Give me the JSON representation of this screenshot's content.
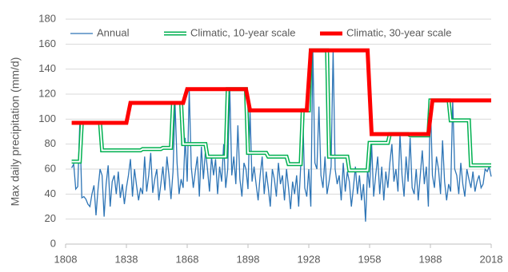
{
  "chart_data": {
    "type": "line",
    "y_label": "Max daily precipitation (mm/d)",
    "xlim": [
      1808,
      2018
    ],
    "xticks": [
      1808,
      1838,
      1868,
      1898,
      1928,
      1958,
      1988,
      2018
    ],
    "ylim": [
      0,
      180
    ],
    "yticks": [
      0,
      20,
      40,
      60,
      80,
      100,
      120,
      140,
      160,
      180
    ],
    "grid": true,
    "legend": "top",
    "series": [
      {
        "name": "Annual",
        "color": "#2e75b6",
        "linewidth": 1.3,
        "x": [
          1811,
          1812,
          1813,
          1814,
          1815,
          1816,
          1817,
          1818,
          1819,
          1820,
          1821,
          1822,
          1823,
          1824,
          1825,
          1826,
          1827,
          1828,
          1829,
          1830,
          1831,
          1832,
          1833,
          1834,
          1835,
          1836,
          1837,
          1838,
          1839,
          1840,
          1841,
          1842,
          1843,
          1844,
          1845,
          1846,
          1847,
          1848,
          1849,
          1850,
          1851,
          1852,
          1853,
          1854,
          1855,
          1856,
          1857,
          1858,
          1859,
          1860,
          1861,
          1862,
          1863,
          1864,
          1865,
          1866,
          1867,
          1868,
          1869,
          1870,
          1871,
          1872,
          1873,
          1874,
          1875,
          1876,
          1877,
          1878,
          1879,
          1880,
          1881,
          1882,
          1883,
          1884,
          1885,
          1886,
          1887,
          1888,
          1889,
          1890,
          1891,
          1892,
          1893,
          1894,
          1895,
          1896,
          1897,
          1898,
          1899,
          1900,
          1901,
          1902,
          1903,
          1904,
          1905,
          1906,
          1907,
          1908,
          1909,
          1910,
          1911,
          1912,
          1913,
          1914,
          1915,
          1916,
          1917,
          1918,
          1919,
          1920,
          1921,
          1922,
          1923,
          1924,
          1925,
          1926,
          1927,
          1928,
          1929,
          1930,
          1931,
          1932,
          1933,
          1934,
          1935,
          1936,
          1937,
          1938,
          1939,
          1940,
          1941,
          1942,
          1943,
          1944,
          1945,
          1946,
          1947,
          1948,
          1949,
          1950,
          1951,
          1952,
          1953,
          1954,
          1955,
          1956,
          1957,
          1958,
          1959,
          1960,
          1961,
          1962,
          1963,
          1964,
          1965,
          1966,
          1967,
          1968,
          1969,
          1970,
          1971,
          1972,
          1973,
          1974,
          1975,
          1976,
          1977,
          1978,
          1979,
          1980,
          1981,
          1982,
          1983,
          1984,
          1985,
          1986,
          1987,
          1988,
          1989,
          1990,
          1991,
          1992,
          1993,
          1994,
          1995,
          1996,
          1997,
          1998,
          1999,
          2000,
          2001,
          2002,
          2003,
          2004,
          2005,
          2006,
          2007,
          2008,
          2009,
          2010,
          2011,
          2012,
          2013,
          2014,
          2015,
          2016,
          2017,
          2018
        ],
        "values": [
          61,
          64,
          44,
          46,
          97,
          37,
          38,
          36,
          32,
          30,
          40,
          47,
          23,
          44,
          60,
          55,
          22,
          48,
          63,
          30,
          50,
          55,
          40,
          58,
          37,
          48,
          32,
          45,
          55,
          68,
          38,
          60,
          47,
          35,
          45,
          40,
          70,
          42,
          55,
          73,
          41,
          52,
          60,
          35,
          48,
          62,
          43,
          70,
          55,
          36,
          58,
          113,
          65,
          40,
          52,
          45,
          85,
          50,
          124,
          62,
          45,
          58,
          70,
          38,
          78,
          52,
          75,
          60,
          42,
          70,
          55,
          68,
          40,
          62,
          50,
          80,
          45,
          60,
          125,
          55,
          70,
          48,
          95,
          52,
          38,
          65,
          60,
          44,
          107,
          50,
          62,
          48,
          35,
          55,
          70,
          40,
          58,
          45,
          30,
          60,
          52,
          38,
          65,
          48,
          55,
          35,
          60,
          45,
          28,
          50,
          40,
          55,
          30,
          62,
          107,
          45,
          38,
          60,
          30,
          155,
          65,
          60,
          110,
          55,
          45,
          70,
          40,
          50,
          62,
          155,
          60,
          48,
          55,
          35,
          65,
          42,
          58,
          50,
          30,
          45,
          62,
          40,
          55,
          35,
          48,
          18,
          60,
          45,
          80,
          38,
          55,
          70,
          40,
          62,
          35,
          58,
          45,
          65,
          80,
          50,
          60,
          42,
          88,
          55,
          38,
          70,
          50,
          85,
          45,
          40,
          60,
          35,
          55,
          75,
          48,
          62,
          30,
          115,
          55,
          45,
          70,
          60,
          40,
          83,
          50,
          35,
          48,
          42,
          115,
          60,
          55,
          40,
          65,
          48,
          38,
          60,
          52,
          45,
          58,
          42,
          50,
          55,
          45,
          48,
          60,
          58,
          62,
          54
        ]
      },
      {
        "name": "Climatic, 10-year scale",
        "color": "#00b050",
        "linewidth": 5,
        "hollow": true,
        "x": [
          1811,
          1815,
          1816,
          1825,
          1826,
          1845,
          1846,
          1855,
          1856,
          1860,
          1861,
          1865,
          1866,
          1877,
          1878,
          1887,
          1888,
          1897,
          1898,
          1907,
          1908,
          1917,
          1918,
          1924,
          1925,
          1928,
          1929,
          1937,
          1938,
          1947,
          1948,
          1957,
          1958,
          1967,
          1968,
          1977,
          1978,
          1987,
          1988,
          1997,
          1998,
          2007,
          2008,
          2018
        ],
        "values": [
          66,
          66,
          97,
          97,
          75,
          75,
          76,
          76,
          77,
          77,
          113,
          113,
          80,
          80,
          70,
          70,
          124,
          124,
          73,
          73,
          70,
          70,
          64,
          64,
          107,
          107,
          155,
          155,
          70,
          70,
          59,
          59,
          81,
          81,
          88,
          88,
          87,
          87,
          115,
          115,
          99,
          99,
          63,
          63
        ]
      },
      {
        "name": "Climatic, 30-year scale",
        "color": "#ff0000",
        "linewidth": 5,
        "x": [
          1811,
          1838,
          1840,
          1866,
          1868,
          1897,
          1899,
          1927,
          1929,
          1957,
          1959,
          1987,
          1989,
          2018
        ],
        "values": [
          97,
          97,
          113,
          113,
          124,
          124,
          107,
          107,
          155,
          155,
          88,
          88,
          115,
          115
        ]
      }
    ]
  }
}
